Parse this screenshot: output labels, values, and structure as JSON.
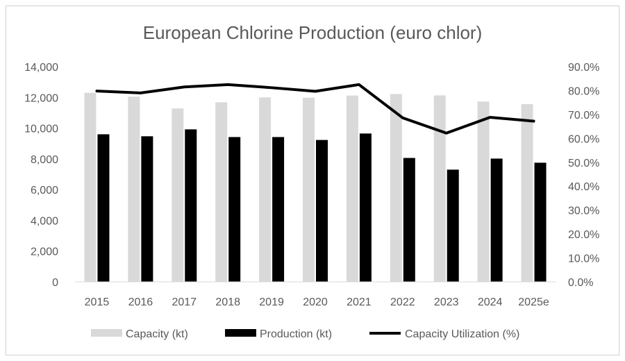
{
  "chart_data": {
    "type": "bar+line",
    "title": "European Chlorine Production (euro chlor)",
    "categories": [
      "2015",
      "2016",
      "2017",
      "2018",
      "2019",
      "2020",
      "2021",
      "2022",
      "2023",
      "2024",
      "2025e"
    ],
    "series": [
      {
        "name": "Capacity (kt)",
        "type": "bar",
        "axis": "left",
        "color": "#d9d9d9",
        "values": [
          12300,
          12050,
          11280,
          11680,
          12000,
          11980,
          12120,
          12220,
          12130,
          11730,
          11560
        ]
      },
      {
        "name": "Production (kt)",
        "type": "bar",
        "axis": "left",
        "color": "#000000",
        "values": [
          9600,
          9470,
          9920,
          9420,
          9420,
          9230,
          9650,
          8060,
          7300,
          8020,
          7750
        ]
      },
      {
        "name": "Capacity Utilization (%)",
        "type": "line",
        "axis": "right",
        "color": "#000000",
        "values": [
          79.8,
          79.0,
          81.5,
          82.5,
          81.2,
          79.7,
          82.5,
          68.6,
          62.2,
          68.8,
          67.2
        ]
      }
    ],
    "y_left": {
      "min": 0,
      "max": 14000,
      "step": 2000,
      "tick_labels": [
        "0",
        "2,000",
        "4,000",
        "6,000",
        "8,000",
        "10,000",
        "12,000",
        "14,000"
      ]
    },
    "y_right": {
      "min": 0,
      "max": 90,
      "step": 10,
      "tick_labels": [
        "0.0%",
        "10.0%",
        "20.0%",
        "30.0%",
        "40.0%",
        "50.0%",
        "60.0%",
        "70.0%",
        "80.0%",
        "90.0%"
      ]
    },
    "grid": false,
    "legend_position": "bottom"
  }
}
